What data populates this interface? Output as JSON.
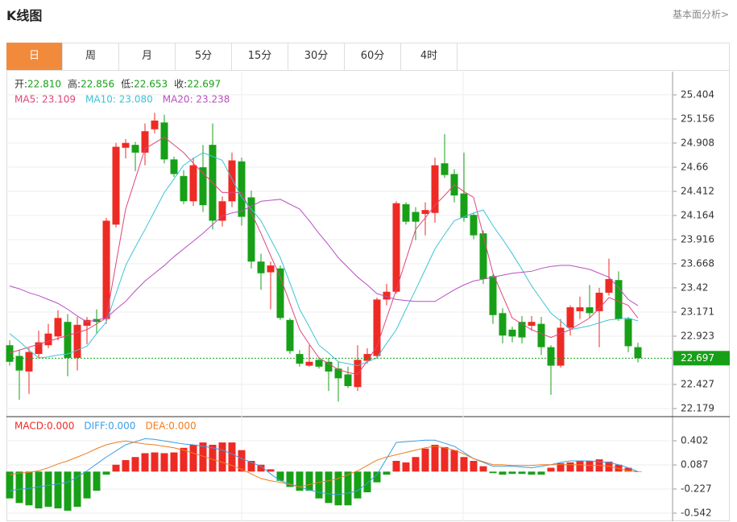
{
  "header": {
    "title": "K线图",
    "link": "基本面分析>"
  },
  "tabs": [
    "日",
    "周",
    "月",
    "5分",
    "15分",
    "30分",
    "60分",
    "4时"
  ],
  "active_tab": 0,
  "chart_data": [
    {
      "type": "candlestick",
      "legend_ohlc": [
        {
          "label": "开:",
          "value": "22.810"
        },
        {
          "label": "高:",
          "value": "22.856"
        },
        {
          "label": "低:",
          "value": "22.653"
        },
        {
          "label": "收:",
          "value": "22.697"
        }
      ],
      "up_color": "#ee2a24",
      "down_color": "#17a017",
      "open": [
        22.83,
        22.72,
        22.56,
        22.74,
        22.83,
        22.92,
        23.07,
        22.7,
        23.03,
        23.1,
        23.1,
        24.07,
        24.86,
        24.89,
        24.81,
        25.05,
        25.12,
        24.74,
        24.57,
        24.31,
        24.66,
        24.89,
        24.11,
        24.31,
        24.72,
        24.35,
        23.69,
        23.58,
        23.62,
        23.09,
        22.74,
        22.62,
        22.68,
        22.66,
        22.59,
        22.53,
        22.4,
        22.67,
        22.72,
        23.3,
        23.38,
        24.28,
        24.2,
        24.18,
        24.19,
        24.7,
        24.59,
        24.39,
        24.17,
        23.98,
        23.54,
        23.16,
        22.99,
        23.07,
        23.03,
        23.05,
        22.81,
        22.62,
        23.01,
        23.18,
        23.22,
        23.18,
        23.37,
        23.5,
        23.1,
        22.81
      ],
      "high": [
        22.88,
        22.78,
        22.8,
        22.98,
        23.05,
        23.19,
        23.15,
        23.12,
        23.12,
        23.2,
        24.14,
        24.91,
        24.95,
        24.92,
        25.11,
        25.22,
        25.2,
        24.77,
        24.63,
        24.76,
        24.89,
        25.11,
        24.36,
        24.81,
        24.76,
        24.42,
        23.77,
        23.69,
        23.65,
        23.11,
        22.78,
        22.83,
        22.7,
        22.7,
        22.66,
        22.61,
        22.83,
        22.8,
        23.32,
        23.46,
        24.31,
        24.3,
        24.25,
        24.3,
        24.76,
        25.0,
        24.64,
        24.81,
        24.19,
        24.01,
        23.56,
        23.21,
        23.02,
        23.13,
        23.13,
        23.12,
        22.83,
        23.1,
        23.24,
        23.33,
        23.45,
        23.42,
        23.72,
        23.59,
        23.12,
        22.856
      ],
      "low": [
        22.62,
        22.27,
        22.33,
        22.7,
        22.8,
        22.88,
        22.51,
        22.57,
        22.84,
        22.95,
        23.05,
        24.04,
        24.75,
        24.62,
        24.68,
        25.01,
        24.7,
        24.56,
        24.28,
        24.26,
        24.2,
        24.02,
        24.05,
        24.25,
        24.06,
        23.62,
        23.4,
        23.2,
        23.09,
        22.74,
        22.61,
        22.61,
        22.59,
        22.36,
        22.25,
        22.39,
        22.36,
        22.64,
        22.7,
        23.24,
        23.36,
        24.07,
        23.91,
        23.96,
        24.09,
        24.55,
        24.3,
        24.1,
        23.92,
        23.46,
        23.05,
        22.85,
        22.86,
        22.85,
        22.98,
        22.73,
        22.32,
        22.6,
        22.93,
        23.1,
        23.11,
        22.81,
        23.34,
        23.08,
        22.76,
        22.653
      ],
      "close": [
        22.66,
        22.57,
        22.76,
        22.86,
        22.95,
        23.11,
        22.7,
        23.04,
        23.09,
        23.07,
        24.11,
        24.87,
        24.91,
        24.81,
        25.03,
        25.14,
        24.74,
        24.59,
        24.31,
        24.68,
        24.27,
        24.11,
        24.31,
        24.73,
        24.15,
        23.69,
        23.57,
        23.65,
        23.11,
        22.77,
        22.64,
        22.66,
        22.61,
        22.56,
        22.49,
        22.41,
        22.68,
        22.74,
        23.3,
        23.38,
        24.29,
        24.1,
        24.1,
        24.22,
        24.68,
        24.58,
        24.37,
        24.14,
        23.96,
        23.51,
        23.14,
        22.93,
        22.92,
        22.91,
        23.07,
        22.81,
        22.62,
        23.01,
        23.22,
        23.22,
        23.16,
        23.37,
        23.51,
        23.1,
        22.82,
        22.697
      ],
      "series": [
        {
          "name": "MA5: 23.109",
          "color": "#e0457b",
          "values": [
            22.75,
            22.78,
            22.81,
            22.84,
            22.87,
            22.9,
            22.93,
            22.96,
            22.99,
            23.05,
            23.11,
            23.67,
            24.23,
            24.54,
            24.85,
            24.91,
            24.97,
            24.89,
            24.81,
            24.7,
            24.6,
            24.5,
            24.4,
            24.4,
            24.4,
            24.19,
            23.98,
            23.75,
            23.53,
            23.26,
            22.99,
            22.84,
            22.7,
            22.64,
            22.58,
            22.55,
            22.53,
            22.67,
            22.82,
            23.11,
            23.4,
            23.71,
            24.02,
            24.14,
            24.27,
            24.37,
            24.48,
            24.41,
            24.35,
            23.96,
            23.57,
            23.34,
            23.11,
            23.05,
            22.99,
            22.95,
            22.91,
            22.95,
            22.99,
            23.05,
            23.11,
            23.21,
            23.32,
            23.28,
            23.24,
            23.109
          ]
        },
        {
          "name": "MA10: 23.080",
          "color": "#3ec3d6",
          "values": [
            22.95,
            22.87,
            22.78,
            22.7,
            22.71,
            22.73,
            22.74,
            22.78,
            22.82,
            22.95,
            23.07,
            23.36,
            23.65,
            23.84,
            24.02,
            24.21,
            24.4,
            24.54,
            24.68,
            24.75,
            24.81,
            24.77,
            24.73,
            24.54,
            24.35,
            24.23,
            24.11,
            23.92,
            23.73,
            23.47,
            23.2,
            23.02,
            22.83,
            22.75,
            22.66,
            22.64,
            22.62,
            22.66,
            22.7,
            22.85,
            22.99,
            23.2,
            23.4,
            23.61,
            23.82,
            23.97,
            24.11,
            24.15,
            24.19,
            24.22,
            24.06,
            23.92,
            23.77,
            23.61,
            23.44,
            23.3,
            23.16,
            23.08,
            22.99,
            23.01,
            23.03,
            23.06,
            23.09,
            23.1,
            23.11,
            23.08
          ]
        },
        {
          "name": "MA20: 23.238",
          "color": "#b84fc2",
          "values": [
            23.44,
            23.41,
            23.37,
            23.34,
            23.3,
            23.26,
            23.2,
            23.13,
            23.07,
            23.09,
            23.11,
            23.2,
            23.28,
            23.39,
            23.49,
            23.57,
            23.65,
            23.74,
            23.82,
            23.9,
            23.98,
            24.07,
            24.16,
            24.19,
            24.21,
            24.26,
            24.31,
            24.32,
            24.33,
            24.28,
            24.23,
            24.11,
            23.98,
            23.86,
            23.73,
            23.63,
            23.53,
            23.45,
            23.36,
            23.33,
            23.3,
            23.29,
            23.28,
            23.28,
            23.28,
            23.34,
            23.4,
            23.45,
            23.49,
            23.51,
            23.53,
            23.55,
            23.57,
            23.58,
            23.59,
            23.62,
            23.64,
            23.65,
            23.65,
            23.63,
            23.61,
            23.57,
            23.53,
            23.42,
            23.3,
            23.238
          ]
        }
      ],
      "last_price": 22.697,
      "last_color": "#17a017",
      "ylim": [
        22.096,
        25.635
      ],
      "yticks": [
        25.404,
        25.156,
        24.908,
        24.66,
        24.412,
        24.164,
        23.916,
        23.668,
        23.42,
        23.171,
        22.923,
        22.427,
        22.179
      ],
      "grid": true
    },
    {
      "type": "macd",
      "series": [
        {
          "name": "MACD:0.000",
          "type": "bar",
          "color": "#ee2a24",
          "neg_color": "#17a017",
          "values": [
            -0.35,
            -0.41,
            -0.44,
            -0.48,
            -0.46,
            -0.48,
            -0.51,
            -0.46,
            -0.35,
            -0.25,
            -0.04,
            0.09,
            0.15,
            0.19,
            0.24,
            0.25,
            0.24,
            0.25,
            0.31,
            0.35,
            0.38,
            0.35,
            0.38,
            0.38,
            0.28,
            0.14,
            0.09,
            0.03,
            -0.12,
            -0.2,
            -0.25,
            -0.25,
            -0.35,
            -0.41,
            -0.44,
            -0.44,
            -0.35,
            -0.27,
            -0.14,
            -0.04,
            0.14,
            0.12,
            0.19,
            0.3,
            0.35,
            0.32,
            0.28,
            0.19,
            0.14,
            0.07,
            -0.02,
            -0.04,
            -0.03,
            -0.03,
            -0.04,
            -0.04,
            0.05,
            0.11,
            0.12,
            0.14,
            0.14,
            0.16,
            0.13,
            0.09,
            0.05,
            0
          ]
        },
        {
          "name": "DIFF:0.000",
          "type": "line",
          "color": "#3a9ee6",
          "values": [
            -0.25,
            -0.23,
            -0.22,
            -0.2,
            -0.18,
            -0.16,
            -0.14,
            -0.07,
            0.01,
            0.1,
            0.19,
            0.27,
            0.35,
            0.39,
            0.43,
            0.42,
            0.4,
            0.38,
            0.36,
            0.35,
            0.33,
            0.31,
            0.28,
            0.23,
            0.17,
            0.12,
            0.07,
            -0.03,
            -0.12,
            -0.16,
            -0.2,
            -0.24,
            -0.27,
            -0.29,
            -0.3,
            -0.28,
            -0.25,
            -0.15,
            -0.04,
            0.17,
            0.38,
            0.39,
            0.4,
            0.41,
            0.41,
            0.37,
            0.33,
            0.25,
            0.17,
            0.12,
            0.07,
            0.07,
            0.07,
            0.06,
            0.05,
            0.07,
            0.09,
            0.12,
            0.14,
            0.14,
            0.14,
            0.13,
            0.12,
            0.09,
            0.05,
            0
          ]
        },
        {
          "name": "DEA:0.000",
          "type": "line",
          "color": "#f07c1e",
          "values": [
            -0.04,
            -0.02,
            -0.01,
            0.01,
            0.05,
            0.1,
            0.14,
            0.19,
            0.24,
            0.3,
            0.35,
            0.38,
            0.4,
            0.38,
            0.36,
            0.35,
            0.33,
            0.31,
            0.28,
            0.24,
            0.2,
            0.16,
            0.12,
            0.08,
            0.03,
            -0.03,
            -0.09,
            -0.12,
            -0.14,
            -0.17,
            -0.2,
            -0.17,
            -0.14,
            -0.12,
            -0.09,
            -0.04,
            0.01,
            0.08,
            0.15,
            0.19,
            0.22,
            0.25,
            0.28,
            0.31,
            0.33,
            0.31,
            0.28,
            0.23,
            0.17,
            0.13,
            0.09,
            0.09,
            0.08,
            0.08,
            0.08,
            0.09,
            0.09,
            0.09,
            0.09,
            0.09,
            0.08,
            0.08,
            0.07,
            0.04,
            0.01,
            0
          ]
        }
      ],
      "ylim": [
        -0.647,
        0.717
      ],
      "yticks": [
        0.402,
        0.087,
        -0.227,
        -0.542
      ],
      "grid": true
    }
  ]
}
